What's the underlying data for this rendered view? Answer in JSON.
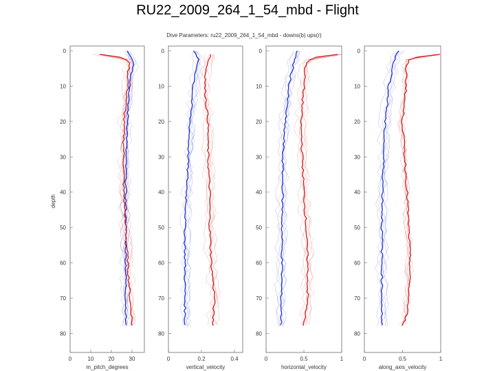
{
  "slide_title": "RU22_2009_264_1_54_mbd - Flight",
  "chart_data": {
    "type": "line",
    "title": "Dive Parameters: ru22_2009_264_1_54_mbd - downs(b) ups(r)",
    "ylabel": "depth",
    "ylim": [
      0,
      84
    ],
    "yticks": [
      0,
      10,
      20,
      30,
      40,
      50,
      60,
      70,
      80
    ],
    "series_colors": {
      "downs": "#1f2fd0",
      "ups": "#d01a1a"
    },
    "panels": [
      {
        "xlabel": "m_pitch_degrees",
        "xlim": [
          0,
          36
        ],
        "xticks": [
          0,
          10,
          20,
          30
        ],
        "tick_labels": [
          "0",
          "10",
          "20",
          "30"
        ],
        "series": [
          {
            "name": "downs",
            "depth": [
              0,
              2,
              4,
              6,
              10,
              15,
              20,
              30,
              40,
              50,
              60,
              70,
              76,
              78
            ],
            "values": [
              28,
              30,
              31,
              30,
              29,
              28,
              28,
              27,
              27,
              27,
              27,
              27,
              27,
              27
            ]
          },
          {
            "name": "ups",
            "depth": [
              1,
              2,
              4,
              6,
              10,
              15,
              20,
              30,
              40,
              50,
              60,
              70,
              76,
              78
            ],
            "values": [
              14,
              27,
              29,
              28,
              28,
              27,
              26,
              26,
              26,
              27,
              28,
              29,
              30,
              30
            ]
          }
        ]
      },
      {
        "xlabel": "vertical_velocity",
        "xlim": [
          0,
          0.45
        ],
        "xticks": [
          0,
          0.2,
          0.4
        ],
        "tick_labels": [
          "0",
          "0.2",
          "0.4"
        ],
        "series": [
          {
            "name": "downs",
            "depth": [
              0,
              2,
              5,
              10,
              15,
              20,
              30,
              40,
              50,
              60,
              70,
              78
            ],
            "values": [
              0.15,
              0.18,
              0.17,
              0.15,
              0.14,
              0.13,
              0.12,
              0.11,
              0.1,
              0.1,
              0.1,
              0.1
            ]
          },
          {
            "name": "ups",
            "depth": [
              1,
              3,
              5,
              10,
              15,
              20,
              30,
              40,
              50,
              60,
              70,
              75,
              78
            ],
            "values": [
              0.26,
              0.24,
              0.23,
              0.22,
              0.23,
              0.24,
              0.24,
              0.25,
              0.25,
              0.26,
              0.28,
              0.27,
              0.27
            ]
          }
        ]
      },
      {
        "xlabel": "horizontal_velocity",
        "xlim": [
          0,
          1
        ],
        "xticks": [
          0,
          0.5,
          1
        ],
        "tick_labels": [
          "0",
          "0.5",
          "1"
        ],
        "series": [
          {
            "name": "downs",
            "depth": [
              0,
              2,
              5,
              10,
              15,
              20,
              30,
              40,
              50,
              60,
              70,
              78
            ],
            "values": [
              0.42,
              0.38,
              0.35,
              0.3,
              0.28,
              0.25,
              0.22,
              0.22,
              0.21,
              0.21,
              0.2,
              0.2
            ]
          },
          {
            "name": "ups",
            "depth": [
              1,
              2,
              4,
              10,
              15,
              20,
              30,
              40,
              50,
              60,
              70,
              75,
              78
            ],
            "values": [
              0.95,
              0.6,
              0.52,
              0.5,
              0.48,
              0.46,
              0.48,
              0.5,
              0.53,
              0.55,
              0.55,
              0.52,
              0.48
            ]
          }
        ]
      },
      {
        "xlabel": "along_axis_velocity",
        "xlim": [
          0,
          1
        ],
        "xticks": [
          0,
          0.5,
          1
        ],
        "tick_labels": [
          "0",
          "0.5",
          "1"
        ],
        "series": [
          {
            "name": "downs",
            "depth": [
              0,
              2,
              5,
              10,
              15,
              20,
              30,
              40,
              50,
              60,
              70,
              78
            ],
            "values": [
              0.45,
              0.4,
              0.37,
              0.32,
              0.3,
              0.27,
              0.25,
              0.24,
              0.23,
              0.23,
              0.23,
              0.23
            ]
          },
          {
            "name": "ups",
            "depth": [
              1,
              2,
              4,
              10,
              15,
              20,
              30,
              40,
              50,
              60,
              70,
              75,
              78
            ],
            "values": [
              0.98,
              0.6,
              0.55,
              0.55,
              0.52,
              0.5,
              0.53,
              0.56,
              0.58,
              0.6,
              0.58,
              0.55,
              0.5
            ]
          }
        ]
      }
    ]
  }
}
